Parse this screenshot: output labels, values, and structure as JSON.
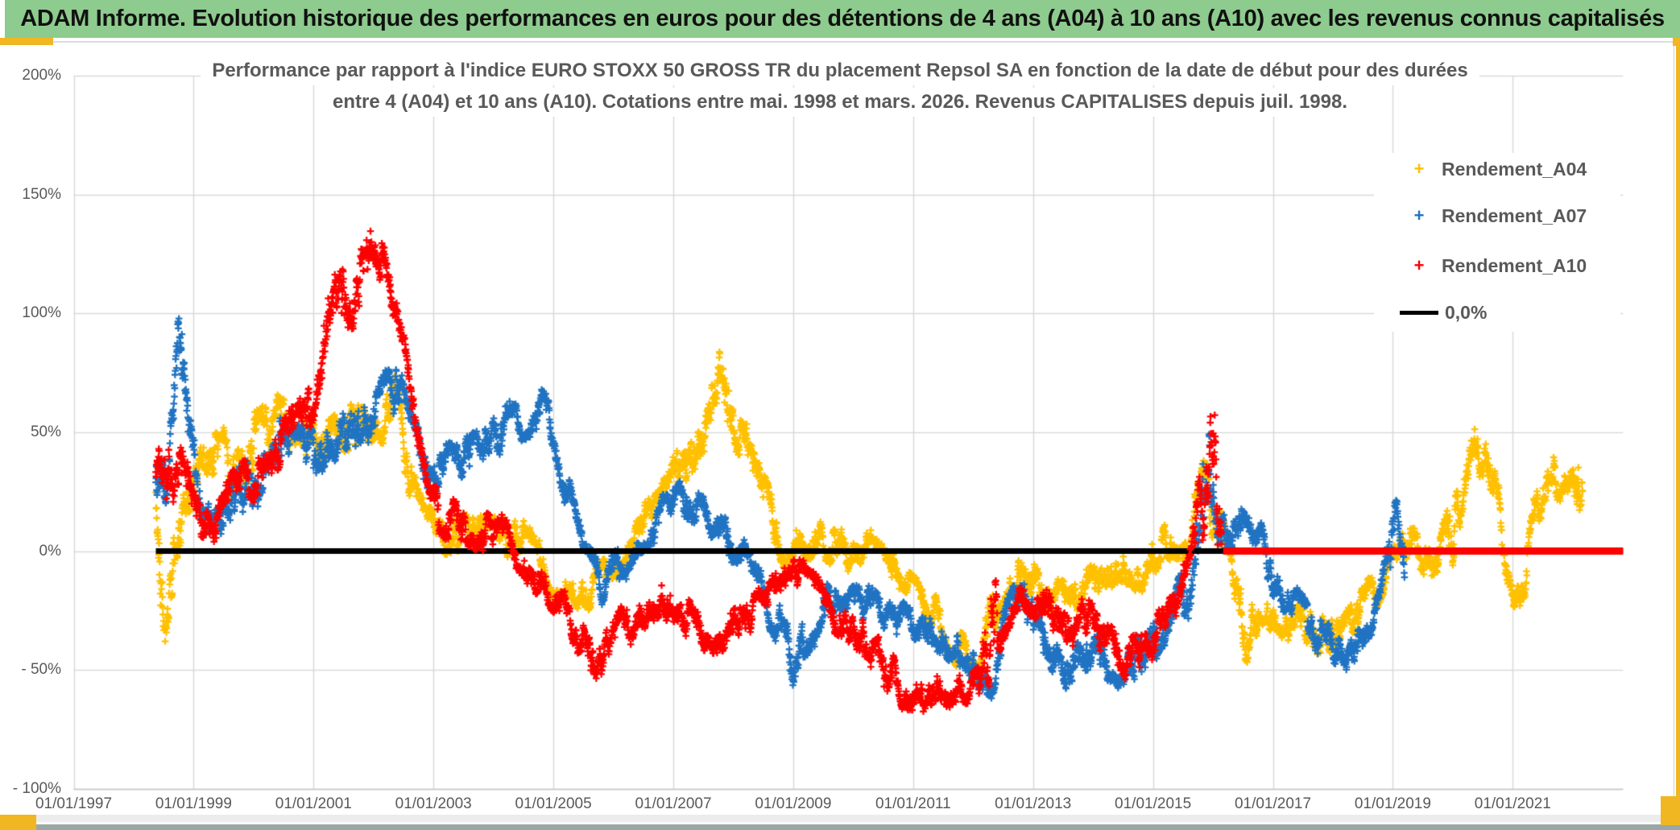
{
  "header": {
    "title": "ADAM Informe. Evolution historique des performances en euros pour des détentions de 4 ans (A04) à 10 ans (A10) avec les revenus connus capitalisés"
  },
  "theme": {
    "title_bar_bg": "#8ECB8E",
    "accent_gold": "#F0B723",
    "grid_color": "#D9D9D9",
    "axis_line_color": "#C6C6C6",
    "text_gray": "#595959",
    "series_yellow": "#FFC000",
    "series_blue": "#2073C2",
    "series_red": "#FF0000",
    "zero_line_black": "#000000"
  },
  "chart": {
    "title_line1": "Performance par rapport à l'indice EURO STOXX 50 GROSS TR  du placement Repsol SA en fonction de la date de début pour des durées",
    "title_line2": "entre 4 (A04) et 10 ans (A10). Cotations entre mai. 1998 et mars. 2026. Revenus CAPITALISES depuis juil. 1998.",
    "legend": [
      {
        "label": "Rendement_A04",
        "color": "#FFC000",
        "marker": "plus"
      },
      {
        "label": "Rendement_A07",
        "color": "#2073C2",
        "marker": "plus"
      },
      {
        "label": "Rendement_A10",
        "color": "#FF0000",
        "marker": "plus"
      },
      {
        "label": "0,0%",
        "color": "#000000",
        "marker": "line"
      }
    ]
  },
  "chart_data": {
    "type": "scatter",
    "marker": "plus",
    "grid": true,
    "x_axis": {
      "tick_labels": [
        "01/01/1997",
        "01/01/1999",
        "01/01/2001",
        "01/01/2003",
        "01/01/2005",
        "01/01/2007",
        "01/01/2009",
        "01/01/2011",
        "01/01/2013",
        "01/01/2015",
        "01/01/2017",
        "01/01/2019",
        "01/01/2021"
      ],
      "tick_years": [
        1997,
        1999,
        2001,
        2003,
        2005,
        2007,
        2009,
        2011,
        2013,
        2015,
        2017,
        2019,
        2021
      ],
      "min_year": 1997.0,
      "max_year": 2022.84
    },
    "y_axis": {
      "unit": "%",
      "tick_labels": [
        "200%",
        "150%",
        "100%",
        "50%",
        "0%",
        "- 50%",
        "- 100%"
      ],
      "tick_values": [
        200,
        150,
        100,
        50,
        0,
        -50,
        -100
      ],
      "min": -100,
      "max": 200
    },
    "zero_line": {
      "name": "0,0%",
      "color": "#000000",
      "value": 0,
      "start_year": 1998.37,
      "end_year": 2022.84,
      "width": 7
    },
    "red_zero_segment": {
      "series": "Rendement_A10",
      "color": "#FF0000",
      "value": 0,
      "start_year": 2016.17,
      "end_year": 2022.84,
      "width": 9
    },
    "step_years": 0.005,
    "series": [
      {
        "name": "Rendement_A04",
        "color": "#FFC000",
        "seed": 11,
        "clip": [
          -62,
          90
        ],
        "start_year": 1998.37,
        "end_year": 2022.17,
        "keyframes": [
          [
            1998.37,
            30,
            12
          ],
          [
            1998.45,
            -12,
            15
          ],
          [
            1998.55,
            -25,
            12
          ],
          [
            1998.7,
            0,
            12
          ],
          [
            1998.9,
            10,
            12
          ],
          [
            1999.1,
            30,
            12
          ],
          [
            1999.4,
            38,
            12
          ],
          [
            1999.7,
            35,
            12
          ],
          [
            2000.0,
            45,
            12
          ],
          [
            2000.5,
            55,
            10
          ],
          [
            2000.8,
            55,
            10
          ],
          [
            2001.1,
            45,
            10
          ],
          [
            2001.5,
            50,
            10
          ],
          [
            2001.8,
            52,
            10
          ],
          [
            2002.1,
            60,
            12
          ],
          [
            2002.35,
            62,
            12
          ],
          [
            2002.55,
            35,
            10
          ],
          [
            2002.8,
            12,
            8
          ],
          [
            2003.1,
            5,
            7
          ],
          [
            2003.5,
            8,
            7
          ],
          [
            2004.0,
            5,
            8
          ],
          [
            2004.4,
            8,
            8
          ],
          [
            2004.8,
            -8,
            8
          ],
          [
            2005.2,
            -12,
            7
          ],
          [
            2005.6,
            -18,
            7
          ],
          [
            2006.0,
            -5,
            7
          ],
          [
            2006.4,
            8,
            7
          ],
          [
            2006.8,
            18,
            7
          ],
          [
            2007.1,
            35,
            10
          ],
          [
            2007.4,
            45,
            10
          ],
          [
            2007.7,
            75,
            13
          ],
          [
            2007.95,
            60,
            12
          ],
          [
            2008.2,
            45,
            10
          ],
          [
            2008.5,
            25,
            8
          ],
          [
            2008.8,
            5,
            8
          ],
          [
            2009.1,
            0,
            7
          ],
          [
            2009.5,
            5,
            8
          ],
          [
            2009.9,
            0,
            7
          ],
          [
            2010.3,
            -2,
            7
          ],
          [
            2010.7,
            -12,
            7
          ],
          [
            2011.1,
            -20,
            7
          ],
          [
            2011.5,
            -30,
            8
          ],
          [
            2011.9,
            -48,
            10
          ],
          [
            2012.1,
            -55,
            7
          ],
          [
            2012.35,
            -20,
            12
          ],
          [
            2012.6,
            -10,
            8
          ],
          [
            2012.9,
            -13,
            7
          ],
          [
            2013.2,
            -20,
            7
          ],
          [
            2013.6,
            -22,
            7
          ],
          [
            2014.0,
            -12,
            7
          ],
          [
            2014.4,
            -6,
            7
          ],
          [
            2014.8,
            -8,
            7
          ],
          [
            2015.1,
            2,
            8
          ],
          [
            2015.35,
            8,
            8
          ],
          [
            2015.6,
            2,
            8
          ],
          [
            2015.85,
            25,
            16
          ],
          [
            2016.05,
            10,
            14
          ],
          [
            2016.3,
            -5,
            8
          ],
          [
            2016.55,
            -35,
            13
          ],
          [
            2016.8,
            -20,
            8
          ],
          [
            2017.1,
            -25,
            8
          ],
          [
            2017.5,
            -30,
            8
          ],
          [
            2017.9,
            -38,
            8
          ],
          [
            2018.2,
            -35,
            8
          ],
          [
            2018.5,
            -22,
            8
          ],
          [
            2018.8,
            -15,
            7
          ],
          [
            2019.1,
            -2,
            7
          ],
          [
            2019.4,
            4,
            7
          ],
          [
            2019.7,
            -8,
            8
          ],
          [
            2020.0,
            10,
            14
          ],
          [
            2020.2,
            40,
            14
          ],
          [
            2020.35,
            50,
            10
          ],
          [
            2020.55,
            35,
            10
          ],
          [
            2020.8,
            12,
            10
          ],
          [
            2021.0,
            -10,
            10
          ],
          [
            2021.15,
            -18,
            8
          ],
          [
            2021.4,
            15,
            10
          ],
          [
            2021.6,
            38,
            10
          ],
          [
            2021.8,
            32,
            10
          ],
          [
            2022.0,
            45,
            12
          ],
          [
            2022.17,
            30,
            18
          ]
        ]
      },
      {
        "name": "Rendement_A07",
        "color": "#2073C2",
        "seed": 22,
        "clip": [
          -65,
          98
        ],
        "start_year": 1998.37,
        "end_year": 2019.2,
        "keyframes": [
          [
            1998.37,
            28,
            10
          ],
          [
            1998.6,
            35,
            12
          ],
          [
            1998.75,
            65,
            30
          ],
          [
            1998.9,
            45,
            15
          ],
          [
            1999.1,
            20,
            10
          ],
          [
            1999.35,
            10,
            8
          ],
          [
            1999.6,
            25,
            10
          ],
          [
            2000.0,
            30,
            10
          ],
          [
            2000.4,
            45,
            10
          ],
          [
            2000.8,
            40,
            10
          ],
          [
            2001.2,
            45,
            10
          ],
          [
            2001.6,
            50,
            10
          ],
          [
            2002.0,
            55,
            10
          ],
          [
            2002.35,
            68,
            12
          ],
          [
            2002.7,
            42,
            10
          ],
          [
            2003.0,
            32,
            8
          ],
          [
            2003.4,
            38,
            8
          ],
          [
            2003.8,
            45,
            8
          ],
          [
            2004.2,
            52,
            8
          ],
          [
            2004.6,
            58,
            8
          ],
          [
            2004.85,
            62,
            7
          ],
          [
            2005.05,
            45,
            8
          ],
          [
            2005.25,
            22,
            8
          ],
          [
            2005.5,
            -5,
            8
          ],
          [
            2005.8,
            -15,
            7
          ],
          [
            2006.1,
            -5,
            7
          ],
          [
            2006.5,
            8,
            7
          ],
          [
            2006.9,
            18,
            7
          ],
          [
            2007.2,
            22,
            7
          ],
          [
            2007.5,
            15,
            7
          ],
          [
            2007.8,
            12,
            7
          ],
          [
            2008.1,
            0,
            7
          ],
          [
            2008.4,
            -12,
            7
          ],
          [
            2008.7,
            -28,
            8
          ],
          [
            2009.0,
            -45,
            10
          ],
          [
            2009.2,
            -35,
            9
          ],
          [
            2009.5,
            -22,
            8
          ],
          [
            2009.8,
            -20,
            7
          ],
          [
            2010.1,
            -22,
            7
          ],
          [
            2010.5,
            -28,
            7
          ],
          [
            2010.9,
            -30,
            7
          ],
          [
            2011.3,
            -32,
            8
          ],
          [
            2011.7,
            -38,
            8
          ],
          [
            2012.0,
            -45,
            8
          ],
          [
            2012.3,
            -52,
            9
          ],
          [
            2012.55,
            -32,
            9
          ],
          [
            2012.8,
            -18,
            8
          ],
          [
            2013.1,
            -35,
            8
          ],
          [
            2013.45,
            -55,
            9
          ],
          [
            2013.8,
            -45,
            8
          ],
          [
            2014.2,
            -45,
            8
          ],
          [
            2014.6,
            -48,
            8
          ],
          [
            2015.0,
            -38,
            8
          ],
          [
            2015.3,
            -30,
            8
          ],
          [
            2015.6,
            -12,
            12
          ],
          [
            2015.8,
            25,
            20
          ],
          [
            2015.95,
            42,
            18
          ],
          [
            2016.1,
            15,
            12
          ],
          [
            2016.3,
            5,
            8
          ],
          [
            2016.6,
            18,
            8
          ],
          [
            2016.9,
            -5,
            8
          ],
          [
            2017.2,
            -18,
            7
          ],
          [
            2017.6,
            -30,
            7
          ],
          [
            2018.0,
            -40,
            7
          ],
          [
            2018.25,
            -45,
            7
          ],
          [
            2018.5,
            -35,
            7
          ],
          [
            2018.8,
            -22,
            7
          ],
          [
            2019.05,
            5,
            18
          ],
          [
            2019.2,
            -12,
            8
          ]
        ]
      },
      {
        "name": "Rendement_A10",
        "color": "#FF0000",
        "seed": 33,
        "clip": [
          -68,
          156
        ],
        "start_year": 1998.37,
        "end_year": 2016.15,
        "keyframes": [
          [
            1998.37,
            32,
            10
          ],
          [
            1998.6,
            35,
            12
          ],
          [
            1998.9,
            28,
            10
          ],
          [
            1999.15,
            12,
            8
          ],
          [
            1999.35,
            8,
            6
          ],
          [
            1999.6,
            25,
            8
          ],
          [
            1999.9,
            32,
            8
          ],
          [
            2000.2,
            30,
            8
          ],
          [
            2000.5,
            45,
            10
          ],
          [
            2000.8,
            55,
            10
          ],
          [
            2001.0,
            70,
            12
          ],
          [
            2001.2,
            95,
            12
          ],
          [
            2001.45,
            105,
            14
          ],
          [
            2001.7,
            110,
            14
          ],
          [
            2001.95,
            140,
            12
          ],
          [
            2002.1,
            125,
            12
          ],
          [
            2002.3,
            95,
            12
          ],
          [
            2002.5,
            80,
            10
          ],
          [
            2002.7,
            45,
            10
          ],
          [
            2002.9,
            22,
            8
          ],
          [
            2003.2,
            14,
            8
          ],
          [
            2003.6,
            10,
            8
          ],
          [
            2004.0,
            8,
            7
          ],
          [
            2004.3,
            5,
            7
          ],
          [
            2004.6,
            -8,
            7
          ],
          [
            2004.9,
            -15,
            7
          ],
          [
            2005.2,
            -25,
            7
          ],
          [
            2005.5,
            -40,
            8
          ],
          [
            2005.8,
            -48,
            8
          ],
          [
            2006.1,
            -32,
            7
          ],
          [
            2006.4,
            -28,
            7
          ],
          [
            2006.7,
            -22,
            7
          ],
          [
            2007.0,
            -25,
            7
          ],
          [
            2007.3,
            -30,
            7
          ],
          [
            2007.6,
            -38,
            7
          ],
          [
            2007.9,
            -32,
            7
          ],
          [
            2008.2,
            -28,
            7
          ],
          [
            2008.5,
            -25,
            7
          ],
          [
            2008.8,
            -15,
            7
          ],
          [
            2009.1,
            -12,
            7
          ],
          [
            2009.4,
            -18,
            7
          ],
          [
            2009.7,
            -28,
            7
          ],
          [
            2010.0,
            -32,
            7
          ],
          [
            2010.3,
            -40,
            8
          ],
          [
            2010.6,
            -52,
            8
          ],
          [
            2010.9,
            -60,
            7
          ],
          [
            2011.2,
            -58,
            7
          ],
          [
            2011.5,
            -60,
            7
          ],
          [
            2011.8,
            -55,
            7
          ],
          [
            2012.05,
            -58,
            7
          ],
          [
            2012.3,
            -35,
            25
          ],
          [
            2012.5,
            -25,
            10
          ],
          [
            2012.75,
            -15,
            8
          ],
          [
            2013.0,
            -18,
            8
          ],
          [
            2013.3,
            -25,
            8
          ],
          [
            2013.6,
            -32,
            8
          ],
          [
            2013.9,
            -30,
            8
          ],
          [
            2014.2,
            -35,
            8
          ],
          [
            2014.6,
            -45,
            8
          ],
          [
            2014.9,
            -40,
            8
          ],
          [
            2015.15,
            -32,
            8
          ],
          [
            2015.4,
            -25,
            8
          ],
          [
            2015.6,
            -12,
            10
          ],
          [
            2015.8,
            15,
            20
          ],
          [
            2015.95,
            45,
            25
          ],
          [
            2016.1,
            35,
            30
          ],
          [
            2016.15,
            10,
            10
          ]
        ]
      }
    ]
  }
}
